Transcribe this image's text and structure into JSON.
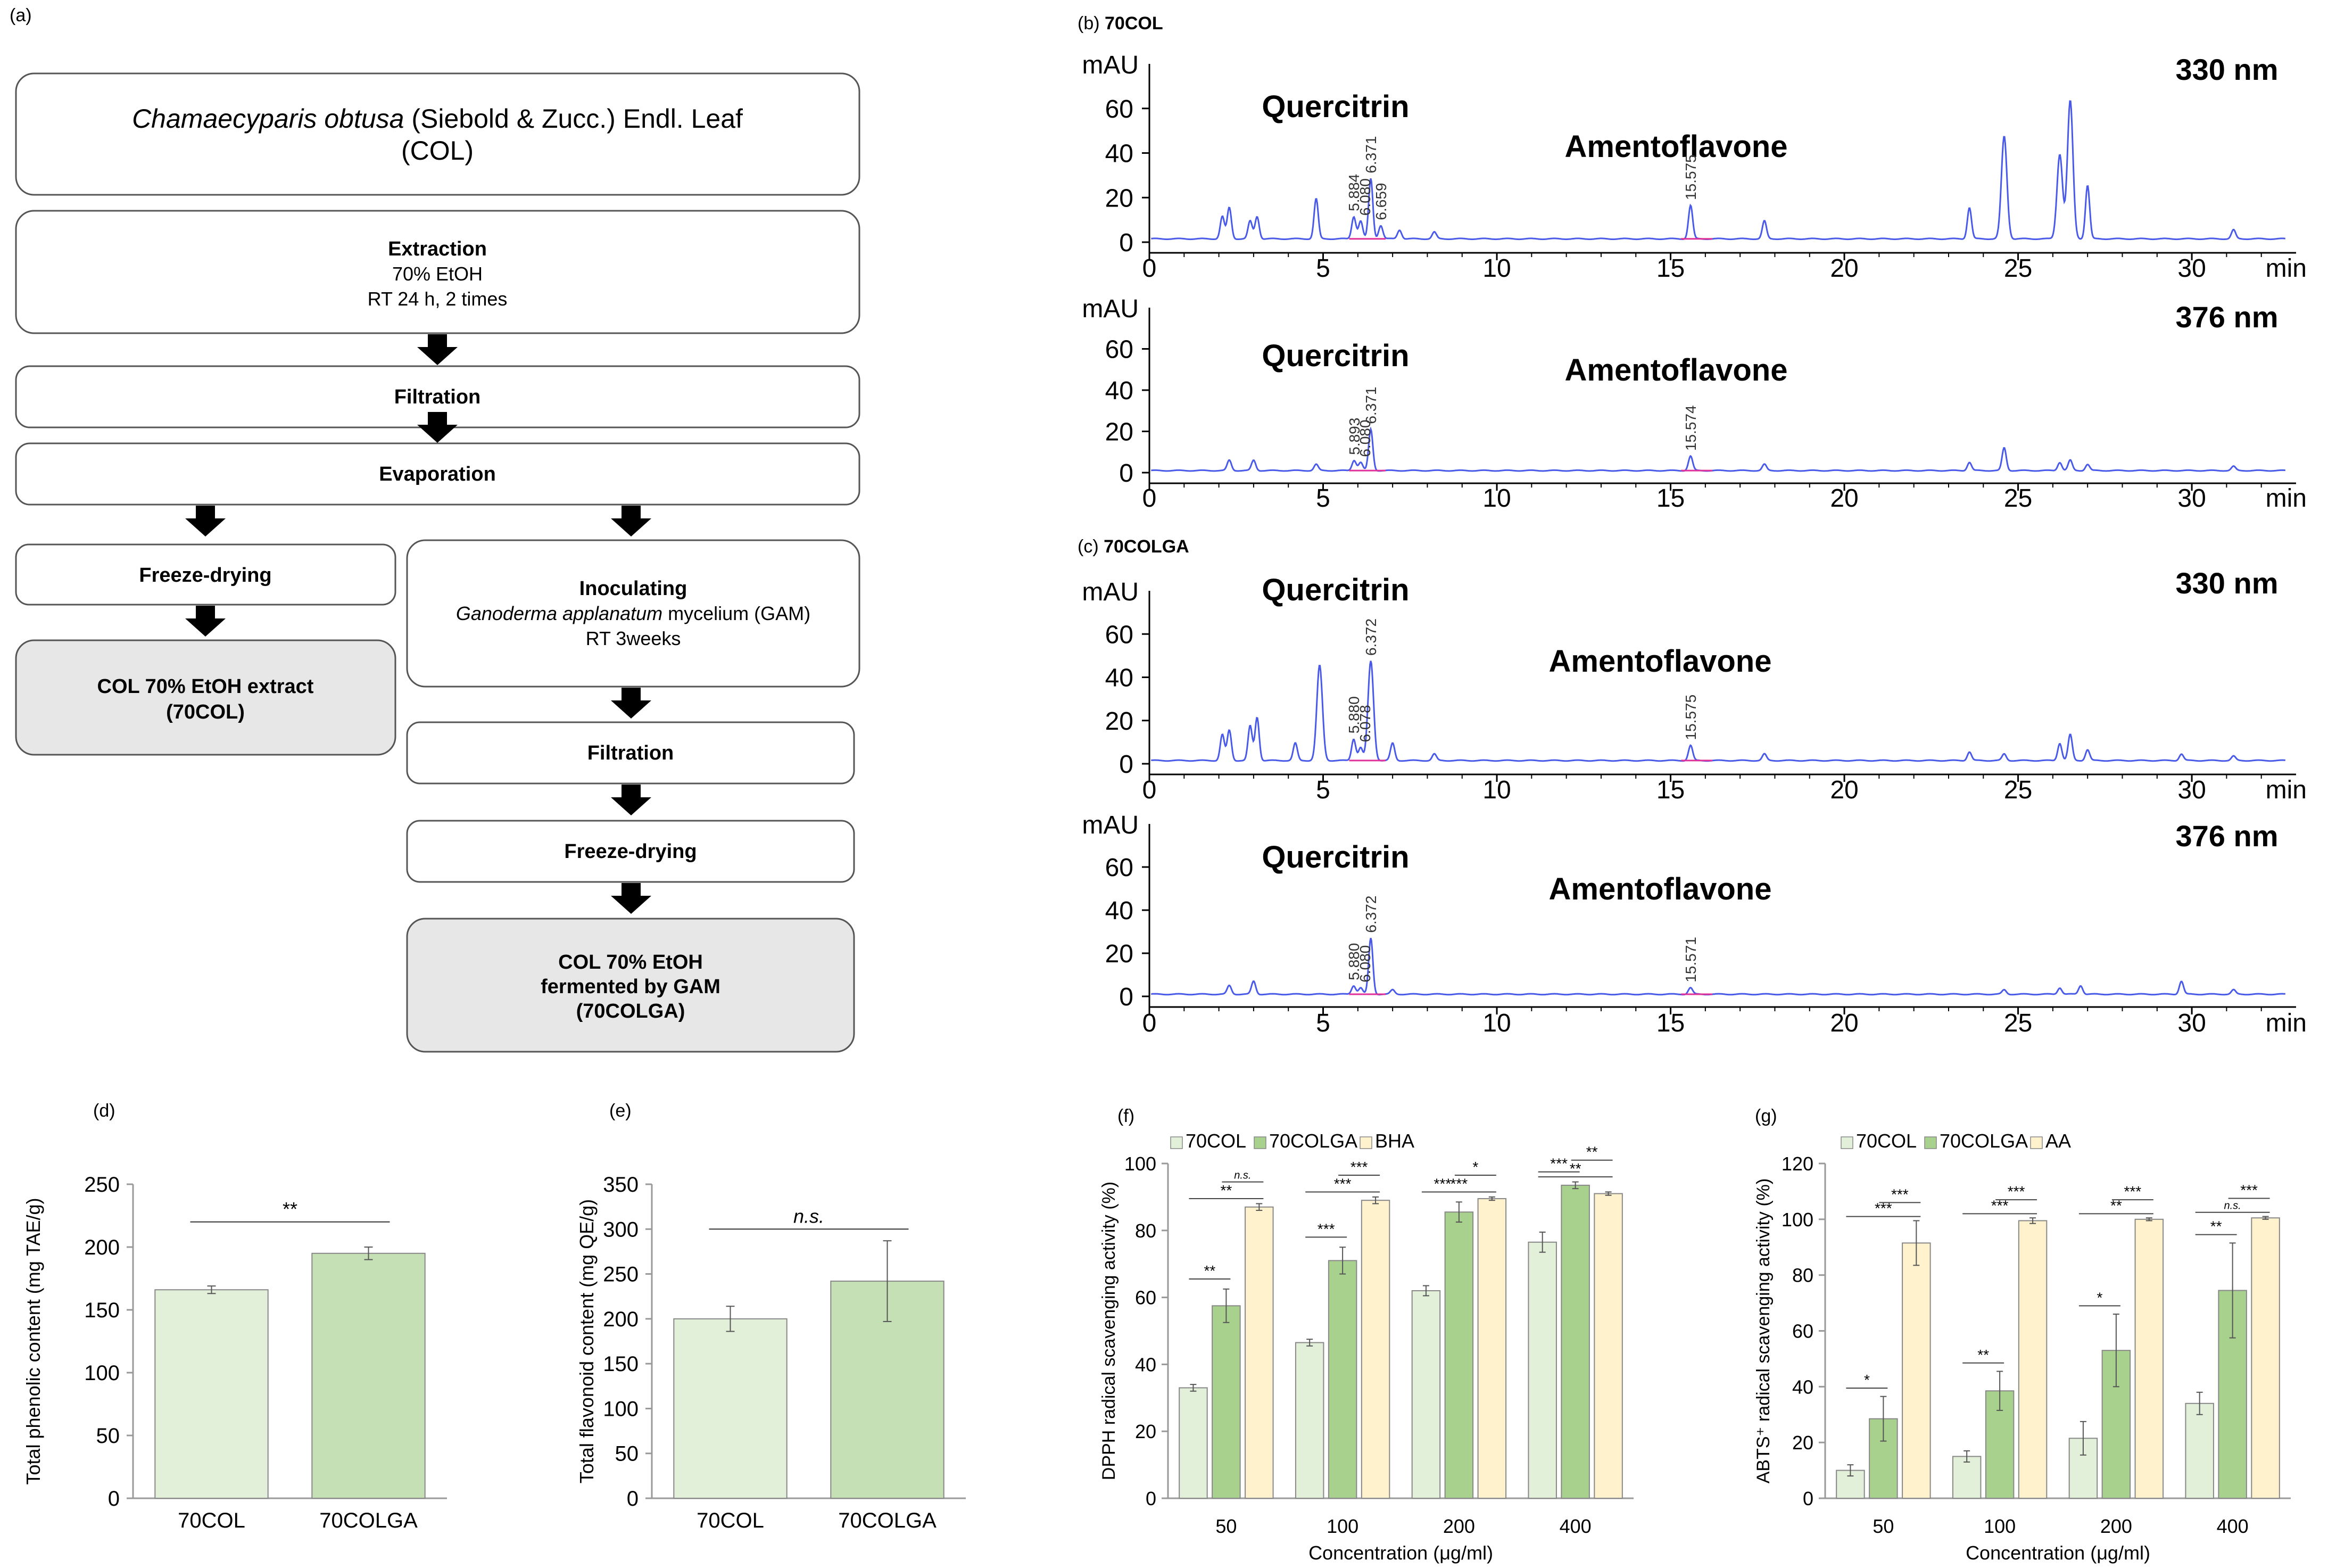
{
  "panel_labels": {
    "a": "(a)",
    "b": "(b)",
    "b_name": "70COL",
    "c": "(c)",
    "c_name": "70COLGA",
    "d": "(d)",
    "e": "(e)",
    "f": "(f)",
    "g": "(g)"
  },
  "flowchart": {
    "title_italic": "Chamaecyparis obtusa",
    "title_rest": " (Siebold & Zucc.) Endl. Leaf",
    "title_line2": "(COL)",
    "extraction": {
      "title": "Extraction",
      "line1": "70% EtOH",
      "line2": "RT 24 h, 2 times"
    },
    "filtration": "Filtration",
    "evaporation": "Evaporation",
    "freeze_drying": "Freeze-drying",
    "col_extract": {
      "line1": "COL 70% EtOH extract",
      "line2": "(70COL)"
    },
    "inoculating": {
      "title": "Inoculating",
      "line1_italic": "Ganoderma applanatum",
      "line1_rest": " mycelium (GAM)",
      "line2": "RT 3weeks"
    },
    "filtration2": "Filtration",
    "freeze_drying2": "Freeze-drying",
    "fermented": {
      "line1": "COL 70% EtOH",
      "line2": "fermented by GAM",
      "line3": "(70COLGA)"
    }
  },
  "chart_data": [
    {
      "id": "b-330",
      "type": "line",
      "title": "330 nm",
      "ylabel": "mAU",
      "xlabel": "min",
      "xlim": [
        0,
        33
      ],
      "ylim": [
        0,
        80
      ],
      "yticks": [
        0,
        20,
        40,
        60
      ],
      "xticks": [
        0,
        5,
        10,
        15,
        20,
        25,
        30
      ],
      "compounds": [
        "Quercitrin",
        "Amentoflavone"
      ],
      "peak_labels": [
        "5.884",
        "6.080",
        "6.371",
        "6.659",
        "15.575"
      ],
      "peaks": [
        [
          2.1,
          10
        ],
        [
          2.3,
          14
        ],
        [
          2.9,
          8
        ],
        [
          3.1,
          10
        ],
        [
          4.8,
          18
        ],
        [
          5.884,
          10
        ],
        [
          6.08,
          8
        ],
        [
          6.371,
          27
        ],
        [
          6.659,
          6
        ],
        [
          7.2,
          4
        ],
        [
          8.2,
          3
        ],
        [
          15.575,
          15
        ],
        [
          17.7,
          8
        ],
        [
          23.6,
          14
        ],
        [
          24.6,
          46
        ],
        [
          26.2,
          38
        ],
        [
          26.5,
          62
        ],
        [
          27.0,
          24
        ],
        [
          31.2,
          4
        ]
      ],
      "baseline": 1.5
    },
    {
      "id": "b-376",
      "type": "line",
      "title": "376 nm",
      "ylabel": "mAU",
      "xlabel": "min",
      "xlim": [
        0,
        33
      ],
      "ylim": [
        0,
        80
      ],
      "yticks": [
        0,
        20,
        40,
        60
      ],
      "xticks": [
        0,
        5,
        10,
        15,
        20,
        25,
        30
      ],
      "compounds": [
        "Quercitrin",
        "Amentoflavone"
      ],
      "peak_labels": [
        "5.893",
        "6.080",
        "6.371",
        "15.574"
      ],
      "peaks": [
        [
          2.3,
          5
        ],
        [
          3.0,
          5
        ],
        [
          4.8,
          3
        ],
        [
          5.893,
          5
        ],
        [
          6.08,
          4
        ],
        [
          6.371,
          20
        ],
        [
          15.574,
          7
        ],
        [
          17.7,
          3
        ],
        [
          23.6,
          4
        ],
        [
          24.6,
          11
        ],
        [
          26.2,
          4
        ],
        [
          26.5,
          5
        ],
        [
          27.0,
          3
        ],
        [
          31.2,
          2
        ]
      ],
      "baseline": 1.0
    },
    {
      "id": "c-330",
      "type": "line",
      "title": "330 nm",
      "ylabel": "mAU",
      "xlabel": "min",
      "xlim": [
        0,
        33
      ],
      "ylim": [
        0,
        80
      ],
      "yticks": [
        0,
        20,
        40,
        60
      ],
      "xticks": [
        0,
        5,
        10,
        15,
        20,
        25,
        30
      ],
      "compounds": [
        "Quercitrin",
        "Amentoflavone"
      ],
      "peak_labels": [
        "5.880",
        "6.078",
        "6.372",
        "15.575"
      ],
      "peaks": [
        [
          2.1,
          12
        ],
        [
          2.3,
          14
        ],
        [
          2.9,
          16
        ],
        [
          3.1,
          20
        ],
        [
          4.2,
          8
        ],
        [
          4.9,
          44
        ],
        [
          5.88,
          10
        ],
        [
          6.078,
          6
        ],
        [
          6.372,
          46
        ],
        [
          7.0,
          8
        ],
        [
          8.2,
          3
        ],
        [
          15.575,
          7
        ],
        [
          17.7,
          3
        ],
        [
          23.6,
          4
        ],
        [
          24.6,
          3
        ],
        [
          26.2,
          8
        ],
        [
          26.5,
          12
        ],
        [
          27.0,
          5
        ],
        [
          29.7,
          3
        ],
        [
          31.2,
          2
        ]
      ],
      "baseline": 1.5
    },
    {
      "id": "c-376",
      "type": "line",
      "title": "376 nm",
      "ylabel": "mAU",
      "xlabel": "min",
      "xlim": [
        0,
        33
      ],
      "ylim": [
        0,
        80
      ],
      "yticks": [
        0,
        20,
        40,
        60
      ],
      "xticks": [
        0,
        5,
        10,
        15,
        20,
        25,
        30
      ],
      "compounds": [
        "Quercitrin",
        "Amentoflavone"
      ],
      "peak_labels": [
        "5.880",
        "6.080",
        "6.372",
        "15.571"
      ],
      "peaks": [
        [
          2.3,
          4
        ],
        [
          3.0,
          6
        ],
        [
          5.88,
          4
        ],
        [
          6.08,
          3
        ],
        [
          6.372,
          26
        ],
        [
          7.0,
          2
        ],
        [
          15.571,
          3
        ],
        [
          24.6,
          2
        ],
        [
          26.2,
          3
        ],
        [
          26.8,
          4
        ],
        [
          29.7,
          6
        ],
        [
          31.2,
          2
        ]
      ],
      "baseline": 1.0
    },
    {
      "id": "d",
      "type": "bar",
      "ylabel": "Total phenolic content (mg TAE/g)",
      "categories": [
        "70COL",
        "70COLGA"
      ],
      "values": [
        166,
        195
      ],
      "errors": [
        3,
        5
      ],
      "ylim": [
        0,
        250
      ],
      "yticks": [
        0,
        50,
        100,
        150,
        200,
        250
      ],
      "annotation": "**",
      "colors": [
        "#e2efd9",
        "#c5e0b4"
      ]
    },
    {
      "id": "e",
      "type": "bar",
      "ylabel": "Total flavonoid content (mg QE/g)",
      "categories": [
        "70COL",
        "70COLGA"
      ],
      "values": [
        200,
        242
      ],
      "errors": [
        14,
        45
      ],
      "ylim": [
        0,
        350
      ],
      "yticks": [
        0,
        50,
        100,
        150,
        200,
        250,
        300,
        350
      ],
      "annotation": "n.s.",
      "colors": [
        "#e2efd9",
        "#c5e0b4"
      ]
    },
    {
      "id": "f",
      "type": "bar",
      "ylabel": "DPPH radical scavenging activity (%)",
      "xlabel": "Concentration (μg/ml)",
      "categories": [
        "50",
        "100",
        "200",
        "400"
      ],
      "ylim": [
        0,
        100
      ],
      "yticks": [
        0,
        20,
        40,
        60,
        80,
        100
      ],
      "series": [
        {
          "name": "70COL",
          "color": "#e2efd9",
          "values": [
            33,
            46.5,
            62,
            76.5
          ],
          "errors": [
            1,
            1,
            1.5,
            3
          ]
        },
        {
          "name": "70COLGA",
          "color": "#a9d18e",
          "values": [
            57.5,
            71,
            85.5,
            93.5
          ],
          "errors": [
            5,
            4,
            3,
            1
          ]
        },
        {
          "name": "BHA",
          "color": "#fff2cc",
          "values": [
            87,
            89,
            89.5,
            91
          ],
          "errors": [
            1,
            1,
            0.5,
            0.5
          ]
        }
      ],
      "significance": [
        {
          "group": 0,
          "from": 0,
          "to": 1,
          "label": "**"
        },
        {
          "group": 0,
          "from": 0,
          "to": 2,
          "label": "**"
        },
        {
          "group": 0,
          "from": 1,
          "to": 2,
          "label": "n.s."
        },
        {
          "group": 1,
          "from": 0,
          "to": 1,
          "label": "***"
        },
        {
          "group": 1,
          "from": 0,
          "to": 2,
          "label": "***"
        },
        {
          "group": 1,
          "from": 1,
          "to": 2,
          "label": "***"
        },
        {
          "group": 2,
          "from": 0,
          "to": 1,
          "label": "***"
        },
        {
          "group": 2,
          "from": 0,
          "to": 2,
          "label": "***"
        },
        {
          "group": 2,
          "from": 1,
          "to": 2,
          "label": "*"
        },
        {
          "group": 3,
          "from": 0,
          "to": 1,
          "label": "***"
        },
        {
          "group": 3,
          "from": 0,
          "to": 2,
          "label": "**"
        },
        {
          "group": 3,
          "from": 1,
          "to": 2,
          "label": "**"
        }
      ]
    },
    {
      "id": "g",
      "type": "bar",
      "ylabel": "ABTS⁺ radical scavenging activity (%)",
      "xlabel": "Concentration (μg/ml)",
      "categories": [
        "50",
        "100",
        "200",
        "400"
      ],
      "ylim": [
        0,
        120
      ],
      "yticks": [
        0,
        20,
        40,
        60,
        80,
        100,
        120
      ],
      "series": [
        {
          "name": "70COL",
          "color": "#e2efd9",
          "values": [
            10,
            15,
            21.5,
            34
          ],
          "errors": [
            2,
            2,
            6,
            4
          ]
        },
        {
          "name": "70COLGA",
          "color": "#a9d18e",
          "values": [
            28.5,
            38.5,
            53,
            74.5
          ],
          "errors": [
            8,
            7,
            13,
            17
          ]
        },
        {
          "name": "AA",
          "color": "#fff2cc",
          "values": [
            91.5,
            99.5,
            100,
            100.5
          ],
          "errors": [
            8,
            1,
            0.5,
            0.5
          ]
        }
      ],
      "significance": [
        {
          "group": 0,
          "from": 0,
          "to": 1,
          "label": "*"
        },
        {
          "group": 0,
          "from": 0,
          "to": 2,
          "label": "***"
        },
        {
          "group": 0,
          "from": 1,
          "to": 2,
          "label": "***"
        },
        {
          "group": 1,
          "from": 0,
          "to": 1,
          "label": "**"
        },
        {
          "group": 1,
          "from": 0,
          "to": 2,
          "label": "***"
        },
        {
          "group": 1,
          "from": 1,
          "to": 2,
          "label": "***"
        },
        {
          "group": 2,
          "from": 0,
          "to": 1,
          "label": "*"
        },
        {
          "group": 2,
          "from": 0,
          "to": 2,
          "label": "**"
        },
        {
          "group": 2,
          "from": 1,
          "to": 2,
          "label": "***"
        },
        {
          "group": 3,
          "from": 0,
          "to": 1,
          "label": "**"
        },
        {
          "group": 3,
          "from": 0,
          "to": 2,
          "label": "n.s."
        },
        {
          "group": 3,
          "from": 1,
          "to": 2,
          "label": "***"
        }
      ]
    }
  ]
}
